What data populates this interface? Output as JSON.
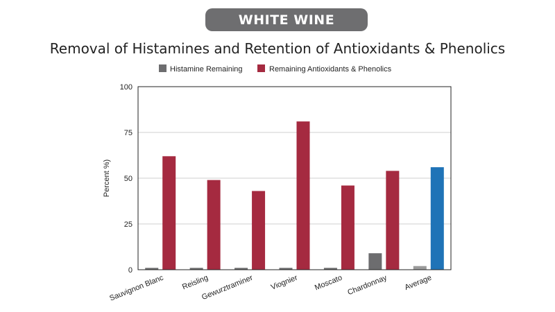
{
  "header": {
    "badge": "WHITE WINE"
  },
  "chart_data": {
    "type": "bar",
    "title": "Removal of Histamines and Retention of Antioxidants & Phenolics",
    "xlabel": "",
    "ylabel": "Percent %)",
    "ylim": [
      0,
      100
    ],
    "yticks": [
      0,
      25,
      50,
      75,
      100
    ],
    "grid": true,
    "legend_position": "top-center",
    "categories": [
      "Sauvignon Blanc",
      "Reisling",
      "Gewurztraminer",
      "Viognier",
      "Moscato",
      "Chardonnay",
      "Average"
    ],
    "series": [
      {
        "name": "Histamine Remaining",
        "color": "#6d6d6f",
        "values": [
          1,
          1,
          1,
          1,
          1,
          9,
          2
        ]
      },
      {
        "name": "Remaining Antioxidants & Phenolics",
        "color": "#a52a40",
        "values": [
          62,
          49,
          43,
          81,
          46,
          54,
          56
        ]
      }
    ],
    "highlight": {
      "category": "Average",
      "colors": [
        "#9b9b9b",
        "#1f73b7"
      ]
    }
  }
}
